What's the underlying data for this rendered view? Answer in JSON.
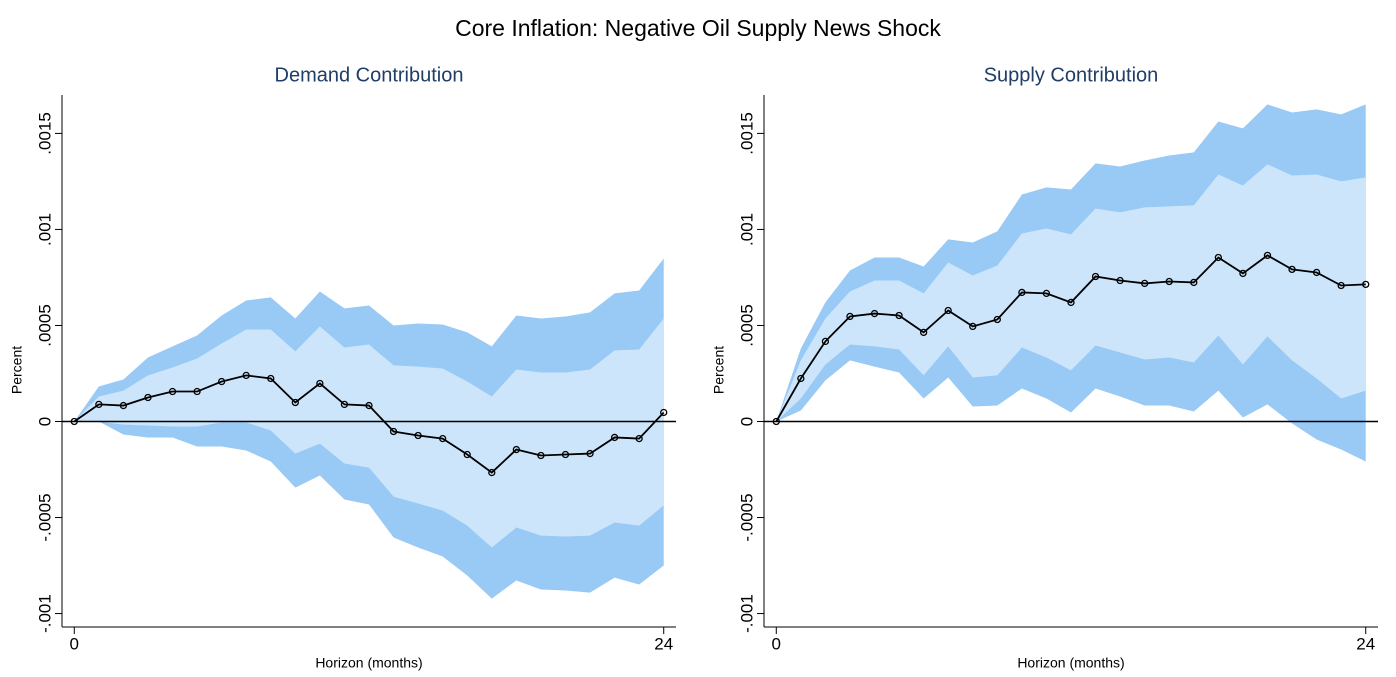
{
  "title": "Core Inflation: Negative Oil Supply News Shock",
  "chart_data": [
    {
      "type": "line",
      "title": "Demand Contribution",
      "xlabel": "Horizon (months)",
      "ylabel": "Percent",
      "x": [
        0,
        1,
        2,
        3,
        4,
        5,
        6,
        7,
        8,
        9,
        10,
        11,
        12,
        13,
        14,
        15,
        16,
        17,
        18,
        19,
        20,
        21,
        22,
        23,
        24
      ],
      "xlim": [
        -0.5,
        24.5
      ],
      "xticks": [
        0,
        24
      ],
      "ylim": [
        -0.00107,
        0.0017
      ],
      "yticks": [
        {
          "value": -0.001,
          "label": "-.001"
        },
        {
          "value": -0.0005,
          "label": "-.0005"
        },
        0,
        {
          "value": 0.0005,
          "label": ".0005"
        },
        {
          "value": 0.001,
          "label": ".001"
        },
        {
          "value": 0.0015,
          "label": ".0015"
        }
      ],
      "bands": [
        {
          "color": "#99c9f5",
          "upper": [
            0,
            0.000182,
            0.000219,
            0.000333,
            0.000391,
            0.000448,
            0.000552,
            0.00063,
            0.000646,
            0.000536,
            0.000677,
            0.000589,
            0.000604,
            0.0005,
            0.00051,
            0.000505,
            0.000464,
            0.000391,
            0.000552,
            0.000536,
            0.000547,
            0.000568,
            0.000667,
            0.000682,
            0.000849
          ],
          "lower": [
            0,
            0,
            -6.8e-05,
            -8.3e-05,
            -8.3e-05,
            -0.00013,
            -0.00013,
            -0.000151,
            -0.000208,
            -0.000344,
            -0.000281,
            -0.000406,
            -0.000432,
            -0.000604,
            -0.000656,
            -0.000703,
            -0.000802,
            -0.000922,
            -0.000828,
            -0.000875,
            -0.00088,
            -0.000891,
            -0.000813,
            -0.000849,
            -0.00075
          ]
        },
        {
          "color": "#cce5fb",
          "upper": [
            0,
            0.00013,
            0.000161,
            0.00024,
            0.000281,
            0.000328,
            0.000406,
            0.000479,
            0.000479,
            0.000365,
            0.000495,
            0.000385,
            0.000401,
            0.000292,
            0.000286,
            0.000276,
            0.000208,
            0.00013,
            0.000271,
            0.000255,
            0.000255,
            0.000271,
            0.00037,
            0.000375,
            0.000536
          ],
          "lower": [
            0,
            0,
            -1.6e-05,
            -2.1e-05,
            -2.6e-05,
            -2.6e-05,
            -5e-06,
            -5e-06,
            -4.7e-05,
            -0.000167,
            -0.000115,
            -0.000219,
            -0.00024,
            -0.000391,
            -0.000427,
            -0.000464,
            -0.000542,
            -0.000656,
            -0.000552,
            -0.000594,
            -0.000599,
            -0.000594,
            -0.000526,
            -0.000542,
            -0.000437
          ]
        }
      ],
      "series": [
        {
          "color": "#000000",
          "values": [
            0,
            8.9e-05,
            8.3e-05,
            0.000125,
            0.000156,
            0.000156,
            0.000208,
            0.00024,
            0.000224,
            9.9e-05,
            0.000198,
            8.9e-05,
            8.3e-05,
            -5.2e-05,
            -7.3e-05,
            -8.9e-05,
            -0.000172,
            -0.000266,
            -0.000146,
            -0.000177,
            -0.000172,
            -0.000167,
            -8.3e-05,
            -8.9e-05,
            4.7e-05
          ]
        }
      ]
    },
    {
      "type": "line",
      "title": "Supply Contribution",
      "xlabel": "Horizon (months)",
      "ylabel": "Percent",
      "x": [
        0,
        1,
        2,
        3,
        4,
        5,
        6,
        7,
        8,
        9,
        10,
        11,
        12,
        13,
        14,
        15,
        16,
        17,
        18,
        19,
        20,
        21,
        22,
        23,
        24
      ],
      "xlim": [
        -0.5,
        24.5
      ],
      "xticks": [
        0,
        24
      ],
      "ylim": [
        -0.00107,
        0.0017
      ],
      "yticks": [
        {
          "value": -0.001,
          "label": "-.001"
        },
        {
          "value": -0.0005,
          "label": "-.0005"
        },
        0,
        {
          "value": 0.0005,
          "label": ".0005"
        },
        {
          "value": 0.001,
          "label": ".001"
        },
        {
          "value": 0.0015,
          "label": ".0015"
        }
      ],
      "bands": [
        {
          "color": "#99c9f5",
          "upper": [
            0,
            0.00038,
            0.00062,
            0.000786,
            0.000854,
            0.000854,
            0.000807,
            0.000948,
            0.000932,
            0.00099,
            0.001182,
            0.001219,
            0.001208,
            0.001344,
            0.001328,
            0.001359,
            0.001385,
            0.001401,
            0.001562,
            0.001526,
            0.001651,
            0.001609,
            0.001625,
            0.001599,
            0.001651
          ],
          "lower": [
            0,
            5.7e-05,
            0.000214,
            0.000318,
            0.000286,
            0.000255,
            0.00012,
            0.000229,
            7.8e-05,
            8.3e-05,
            0.000172,
            0.00012,
            4.7e-05,
            0.000172,
            0.00013,
            8.3e-05,
            8.3e-05,
            5.2e-05,
            0.000161,
            2.1e-05,
            8.9e-05,
            -1e-05,
            -9.4e-05,
            -0.000146,
            -0.000208
          ]
        },
        {
          "color": "#cce5fb",
          "upper": [
            0,
            0.000318,
            0.000536,
            0.000677,
            0.000734,
            0.000734,
            0.000667,
            0.000828,
            0.00076,
            0.000812,
            0.000979,
            0.001005,
            0.000974,
            0.001109,
            0.001089,
            0.001115,
            0.00112,
            0.001125,
            0.001286,
            0.001229,
            0.001339,
            0.001281,
            0.001286,
            0.00125,
            0.001271
          ],
          "lower": [
            0,
            0.00012,
            0.000297,
            0.000401,
            0.000391,
            0.000375,
            0.00024,
            0.000391,
            0.000229,
            0.00024,
            0.000385,
            0.000333,
            0.000266,
            0.000396,
            0.000359,
            0.000323,
            0.000333,
            0.000307,
            0.000448,
            0.000297,
            0.000443,
            0.000318,
            0.000224,
            0.00012,
            0.000161
          ]
        }
      ],
      "series": [
        {
          "color": "#000000",
          "values": [
            0,
            0.000224,
            0.000417,
            0.000547,
            0.000562,
            0.000552,
            0.000464,
            0.000578,
            0.000495,
            0.000531,
            0.000672,
            0.000667,
            0.00062,
            0.000755,
            0.000734,
            0.000719,
            0.000729,
            0.000724,
            0.000854,
            0.000771,
            0.000865,
            0.000792,
            0.000776,
            0.000708,
            0.000714
          ]
        }
      ]
    }
  ]
}
